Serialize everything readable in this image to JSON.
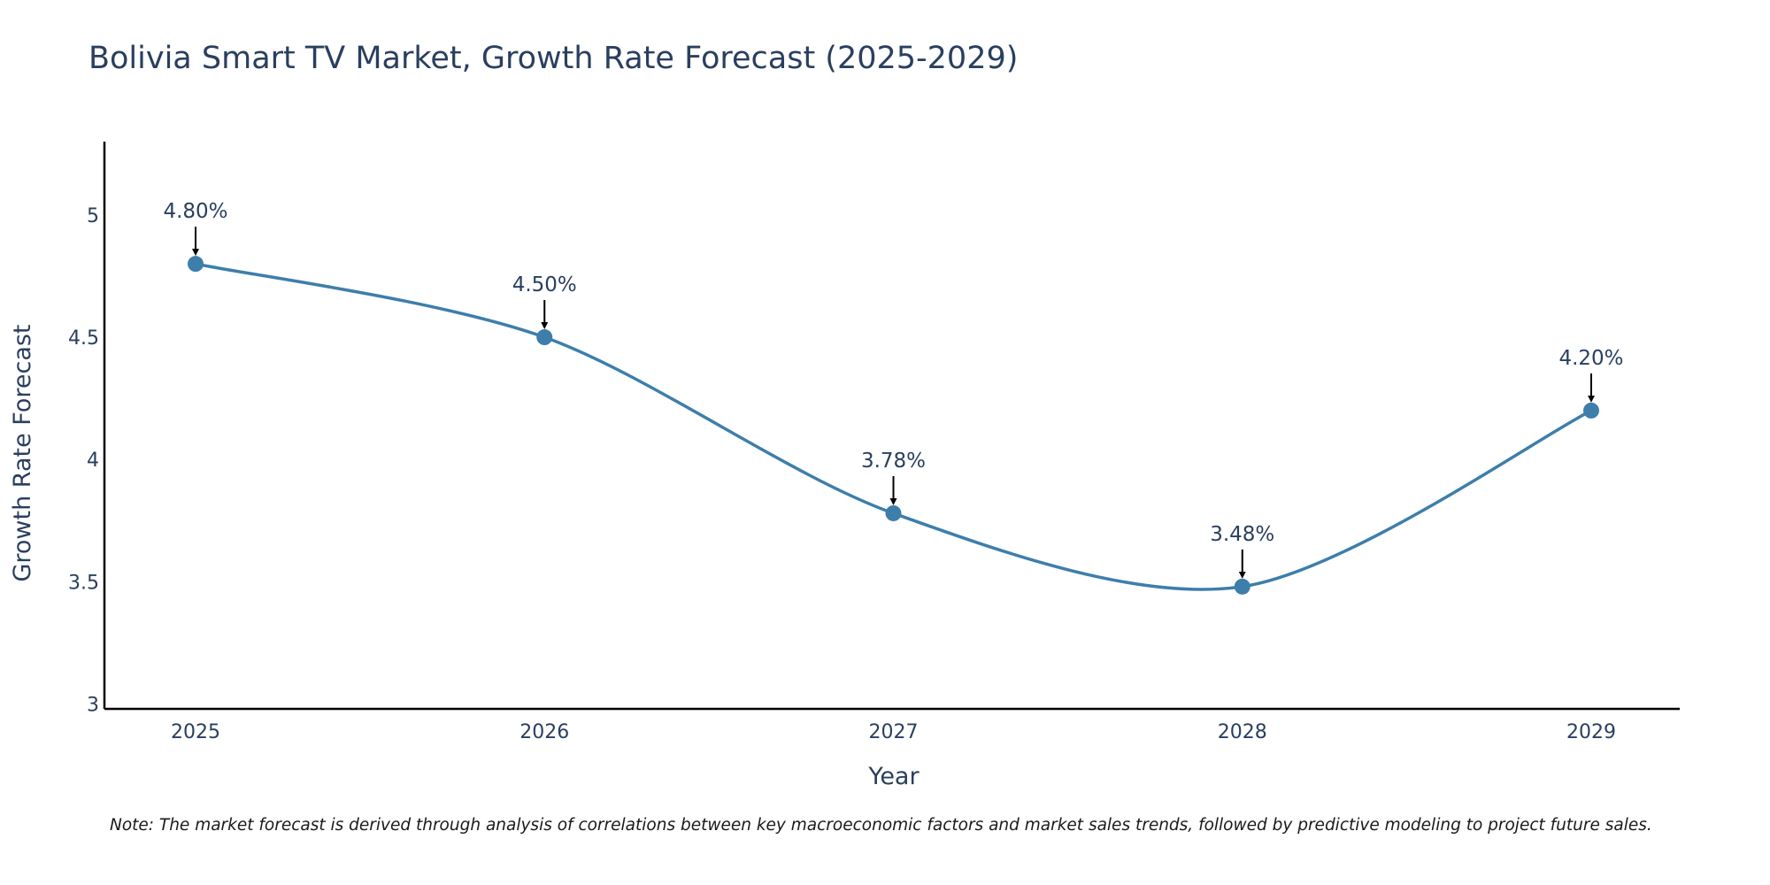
{
  "chart_data": {
    "type": "line",
    "title": "Bolivia Smart TV Market, Growth Rate Forecast (2025-2029)",
    "xlabel": "Year",
    "ylabel": "Growth Rate Forecast",
    "categories": [
      "2025",
      "2026",
      "2027",
      "2028",
      "2029"
    ],
    "values": [
      4.8,
      4.5,
      3.78,
      3.48,
      4.2
    ],
    "data_labels": [
      "4.80%",
      "4.50%",
      "3.78%",
      "3.48%",
      "4.20%"
    ],
    "y_ticks": [
      3,
      3.5,
      4,
      4.5,
      5
    ],
    "y_tick_labels": [
      "3",
      "3.5",
      "4",
      "4.5",
      "5"
    ],
    "ylim": [
      2.98,
      5.3
    ],
    "grid": false,
    "line_shape": "spline",
    "line_color": "#3d7eab",
    "marker_color": "#3d7eab",
    "axis_color": "#000000",
    "text_color": "#2a3f5f"
  },
  "footnote": "Note: The market forecast is derived through analysis of correlations between key macroeconomic factors and market sales trends, followed by predictive modeling to project future sales."
}
